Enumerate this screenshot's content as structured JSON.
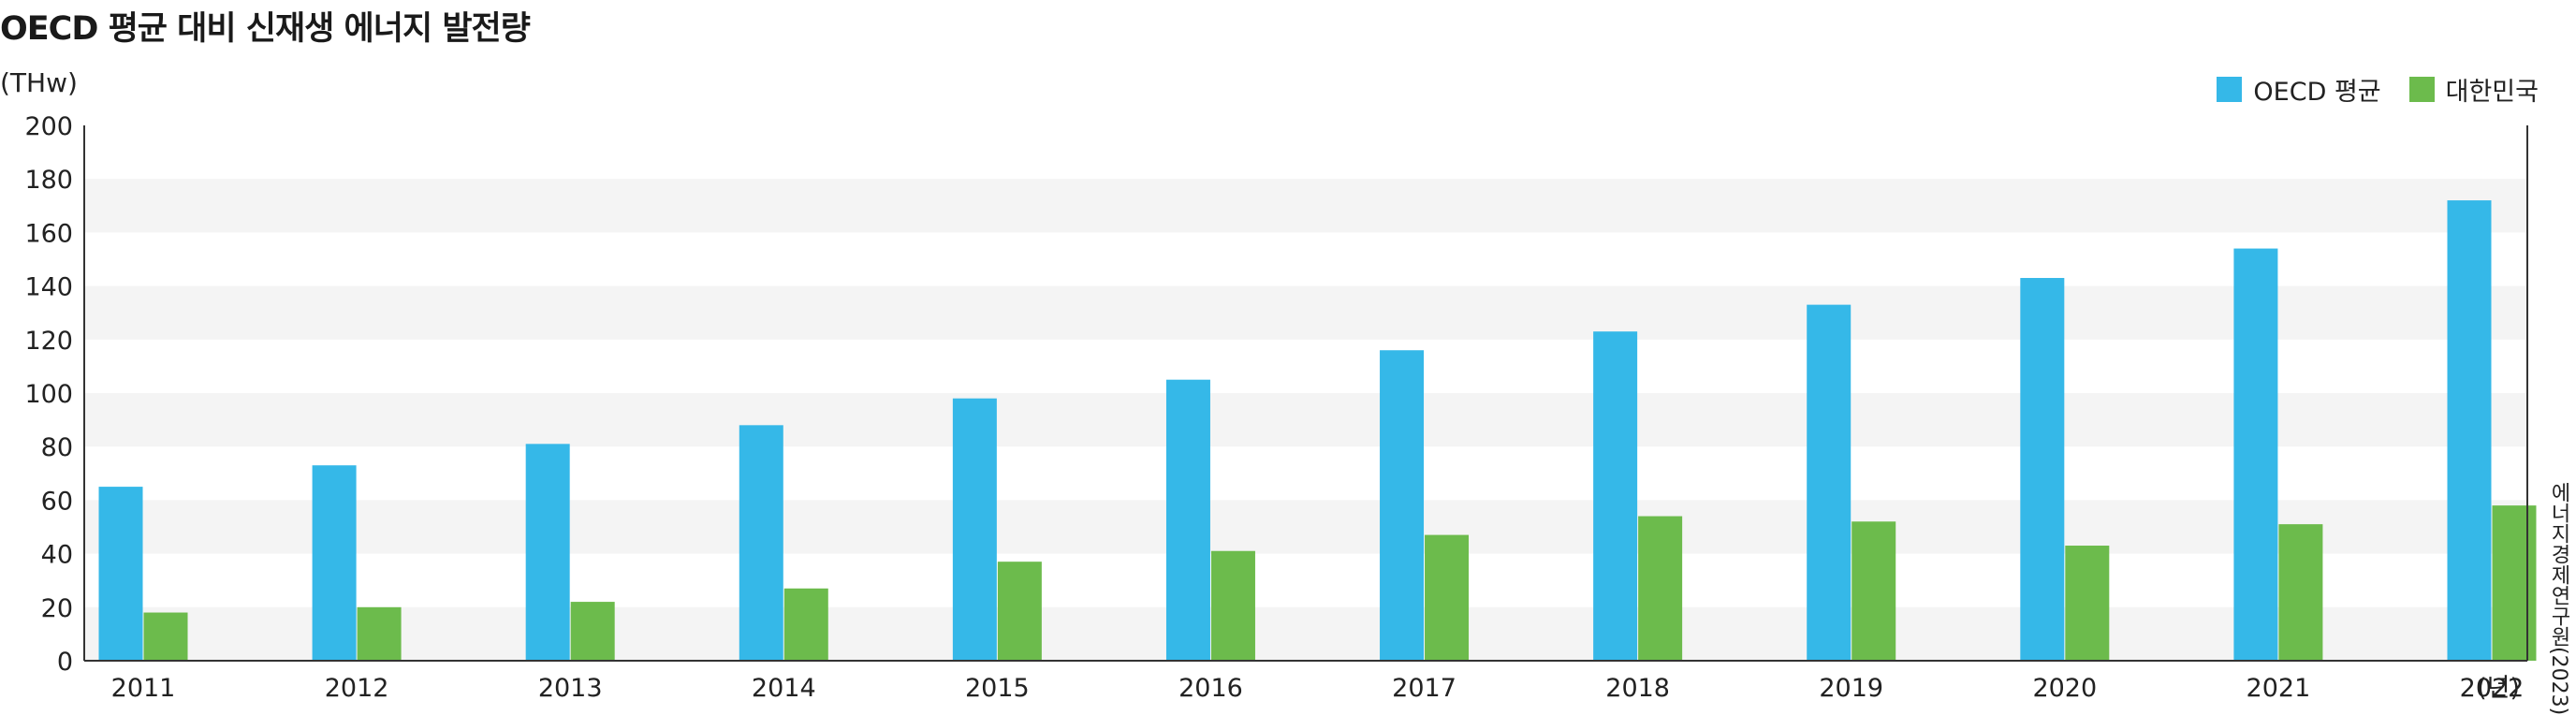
{
  "chart_data": {
    "type": "bar",
    "title": "OECD 평균 대비 신재생 에너지 발전량",
    "ylabel": "(THw)",
    "xlabel": "(년)",
    "source": "에너지경제연구원(2023)",
    "ylim": [
      0,
      200
    ],
    "yticks": [
      0,
      20,
      40,
      60,
      80,
      100,
      120,
      140,
      160,
      180,
      200
    ],
    "grid": "alternating-bands",
    "legend_position": "top-right",
    "categories": [
      "2011",
      "2012",
      "2013",
      "2014",
      "2015",
      "2016",
      "2017",
      "2018",
      "2019",
      "2020",
      "2021",
      "2022"
    ],
    "series": [
      {
        "name": "OECD 평균",
        "color": "#35b8e8",
        "values": [
          65,
          73,
          81,
          88,
          98,
          105,
          116,
          123,
          133,
          143,
          154,
          172
        ]
      },
      {
        "name": "대한민국",
        "color": "#6cbb4c",
        "values": [
          18,
          20,
          22,
          27,
          37,
          41,
          47,
          54,
          52,
          43,
          51,
          58
        ]
      }
    ]
  }
}
